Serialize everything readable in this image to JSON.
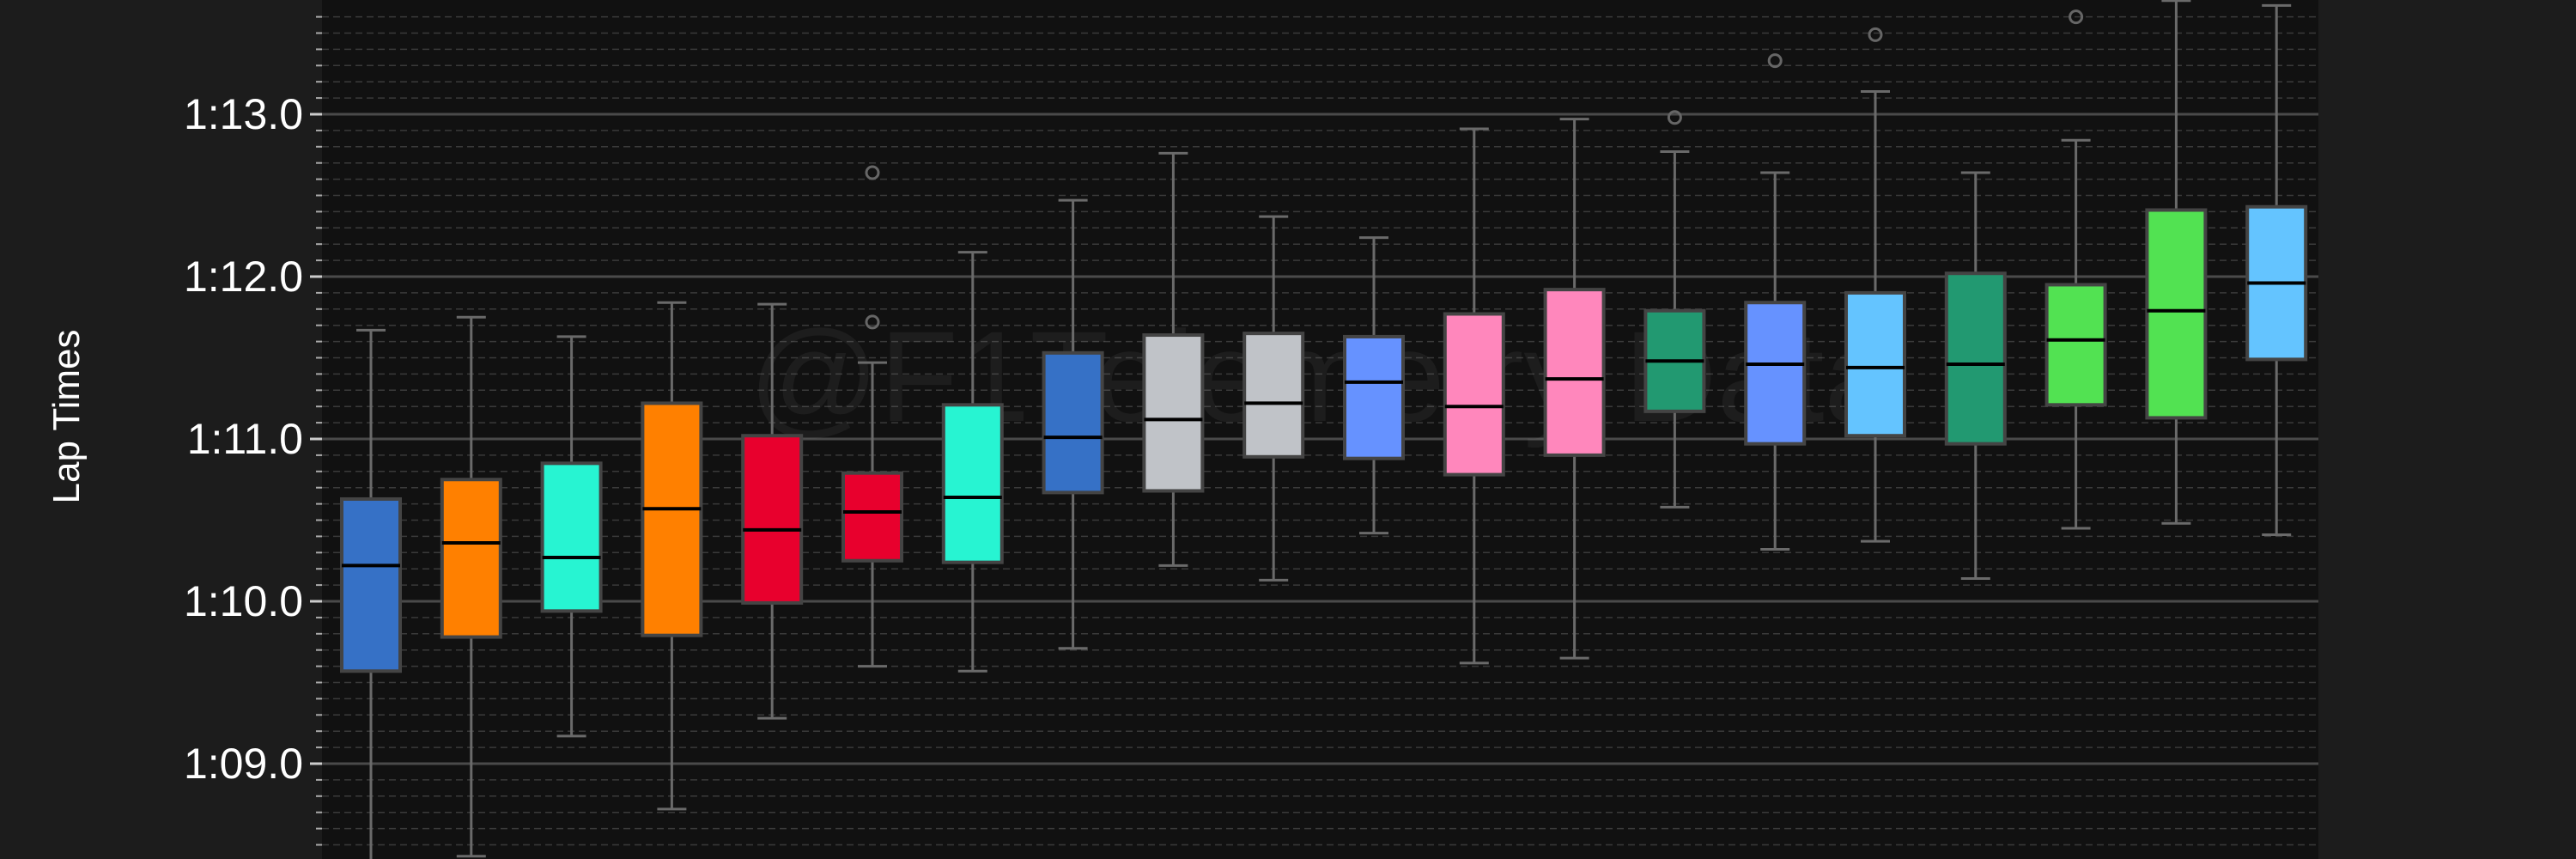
{
  "chart_data": {
    "type": "box",
    "ylabel": "Lap Times",
    "watermark": "@F1Telemetry Data",
    "y_tick_labels": [
      "1:09.0",
      "1:10.0",
      "1:11.0",
      "1:12.0",
      "1:13.0"
    ],
    "y_tick_values": [
      69.0,
      70.0,
      71.0,
      72.0,
      73.0
    ],
    "ylim": [
      68.4,
      73.6
    ],
    "grid": "on",
    "boxes": [
      {
        "color": "#3671C6",
        "whislo": 68.4,
        "q1": 69.57,
        "med": 70.22,
        "q3": 70.63,
        "whishi": 71.67,
        "fliers": []
      },
      {
        "color": "#FF8000",
        "whislo": 68.43,
        "q1": 69.78,
        "med": 70.36,
        "q3": 70.75,
        "whishi": 71.75,
        "fliers": []
      },
      {
        "color": "#27F4D2",
        "whislo": 69.17,
        "q1": 69.94,
        "med": 70.27,
        "q3": 70.85,
        "whishi": 71.63,
        "fliers": []
      },
      {
        "color": "#FF8000",
        "whislo": 68.72,
        "q1": 69.79,
        "med": 70.57,
        "q3": 71.22,
        "whishi": 71.84,
        "fliers": []
      },
      {
        "color": "#E8002D",
        "whislo": 69.28,
        "q1": 69.99,
        "med": 70.44,
        "q3": 71.02,
        "whishi": 71.83,
        "fliers": []
      },
      {
        "color": "#E8002D",
        "whislo": 69.6,
        "q1": 70.25,
        "med": 70.55,
        "q3": 70.79,
        "whishi": 71.47,
        "fliers": [
          71.72,
          72.64
        ]
      },
      {
        "color": "#27F4D2",
        "whislo": 69.57,
        "q1": 70.24,
        "med": 70.64,
        "q3": 71.21,
        "whishi": 72.15,
        "fliers": []
      },
      {
        "color": "#3671C6",
        "whislo": 69.71,
        "q1": 70.67,
        "med": 71.01,
        "q3": 71.53,
        "whishi": 72.47,
        "fliers": []
      },
      {
        "color": "#C0C3C8",
        "whislo": 70.22,
        "q1": 70.68,
        "med": 71.12,
        "q3": 71.64,
        "whishi": 72.76,
        "fliers": []
      },
      {
        "color": "#C0C3C8",
        "whislo": 70.13,
        "q1": 70.89,
        "med": 71.22,
        "q3": 71.65,
        "whishi": 72.37,
        "fliers": []
      },
      {
        "color": "#6692FF",
        "whislo": 70.42,
        "q1": 70.88,
        "med": 71.35,
        "q3": 71.63,
        "whishi": 72.24,
        "fliers": []
      },
      {
        "color": "#FF87BC",
        "whislo": 69.62,
        "q1": 70.78,
        "med": 71.2,
        "q3": 71.77,
        "whishi": 72.91,
        "fliers": []
      },
      {
        "color": "#FF87BC",
        "whislo": 69.65,
        "q1": 70.9,
        "med": 71.37,
        "q3": 71.92,
        "whishi": 72.97,
        "fliers": []
      },
      {
        "color": "#229971",
        "whislo": 70.58,
        "q1": 71.17,
        "med": 71.48,
        "q3": 71.79,
        "whishi": 72.77,
        "fliers": [
          72.98
        ]
      },
      {
        "color": "#6692FF",
        "whislo": 70.32,
        "q1": 70.97,
        "med": 71.46,
        "q3": 71.84,
        "whishi": 72.64,
        "fliers": [
          73.33
        ]
      },
      {
        "color": "#64C4FF",
        "whislo": 70.37,
        "q1": 71.02,
        "med": 71.44,
        "q3": 71.9,
        "whishi": 73.14,
        "fliers": [
          73.49
        ]
      },
      {
        "color": "#229971",
        "whislo": 70.14,
        "q1": 70.97,
        "med": 71.46,
        "q3": 72.02,
        "whishi": 72.64,
        "fliers": []
      },
      {
        "color": "#52E252",
        "whislo": 70.45,
        "q1": 71.21,
        "med": 71.61,
        "q3": 71.95,
        "whishi": 72.84,
        "fliers": [
          73.6
        ]
      },
      {
        "color": "#52E252",
        "whislo": 70.48,
        "q1": 71.13,
        "med": 71.79,
        "q3": 72.41,
        "whishi": 73.7,
        "fliers": []
      },
      {
        "color": "#64C4FF",
        "whislo": 70.41,
        "q1": 71.49,
        "med": 71.96,
        "q3": 72.43,
        "whishi": 73.67,
        "fliers": []
      }
    ]
  }
}
